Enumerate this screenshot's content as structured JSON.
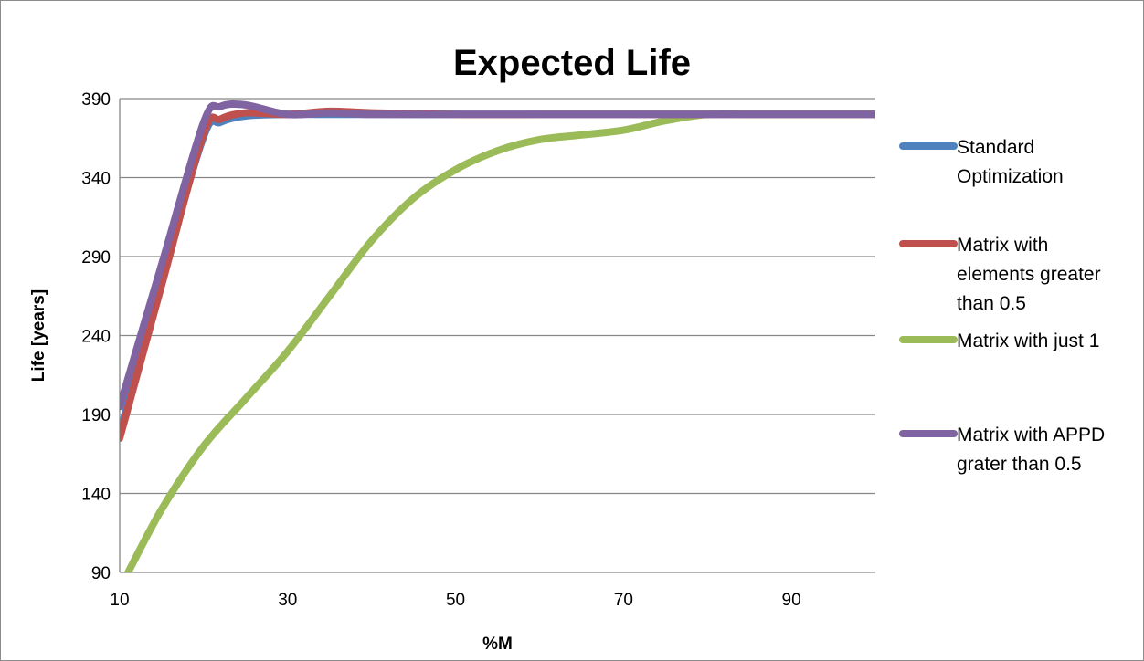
{
  "chart_data": {
    "type": "line",
    "title": "Expected Life",
    "xlabel": "%M",
    "ylabel": "Life [years]",
    "xlim": [
      10,
      100
    ],
    "ylim": [
      90,
      390
    ],
    "x_ticks": [
      10,
      30,
      50,
      70,
      90
    ],
    "y_ticks": [
      90,
      140,
      190,
      240,
      290,
      340,
      390
    ],
    "grid": "horizontal",
    "legend_position": "right",
    "series": [
      {
        "name": "Standard Optimization",
        "legend_lines": [
          "Standard",
          "Optimization"
        ],
        "color": "#4f81bd",
        "x": [
          10,
          15,
          20,
          22,
          25,
          30,
          35,
          40,
          50,
          60,
          70,
          80,
          90,
          100
        ],
        "y": [
          178,
          275,
          366,
          375,
          379,
          380,
          380,
          380,
          380,
          380,
          380,
          380,
          380,
          380
        ]
      },
      {
        "name": "Matrix with elements greater than 0.5",
        "legend_lines": [
          "Matrix with",
          "elements greater",
          "than 0.5"
        ],
        "color": "#c0504d",
        "x": [
          10,
          15,
          20,
          22,
          25,
          30,
          35,
          40,
          50,
          60,
          70,
          80,
          90,
          100
        ],
        "y": [
          175,
          272,
          368,
          377,
          381,
          380,
          382,
          381,
          380,
          380,
          380,
          380,
          380,
          380
        ]
      },
      {
        "name": "Matrix with just 1",
        "legend_lines": [
          "Matrix with just 1"
        ],
        "color": "#9bbb59",
        "x": [
          11,
          15,
          20,
          25,
          30,
          35,
          40,
          45,
          50,
          55,
          60,
          65,
          70,
          75,
          80,
          85,
          90,
          100
        ],
        "y": [
          90,
          130,
          170,
          200,
          230,
          265,
          300,
          327,
          345,
          357,
          364,
          367,
          370,
          376,
          380,
          380,
          380,
          380
        ]
      },
      {
        "name": "Matrix with APPD grater than 0.5",
        "legend_lines": [
          "Matrix with APPD",
          "grater than 0.5"
        ],
        "color": "#8064a2",
        "x": [
          10,
          15,
          20,
          22,
          25,
          30,
          35,
          40,
          50,
          60,
          70,
          80,
          90,
          100
        ],
        "y": [
          195,
          285,
          375,
          385,
          386,
          380,
          381,
          380,
          380,
          380,
          380,
          380,
          380,
          380
        ]
      }
    ]
  }
}
